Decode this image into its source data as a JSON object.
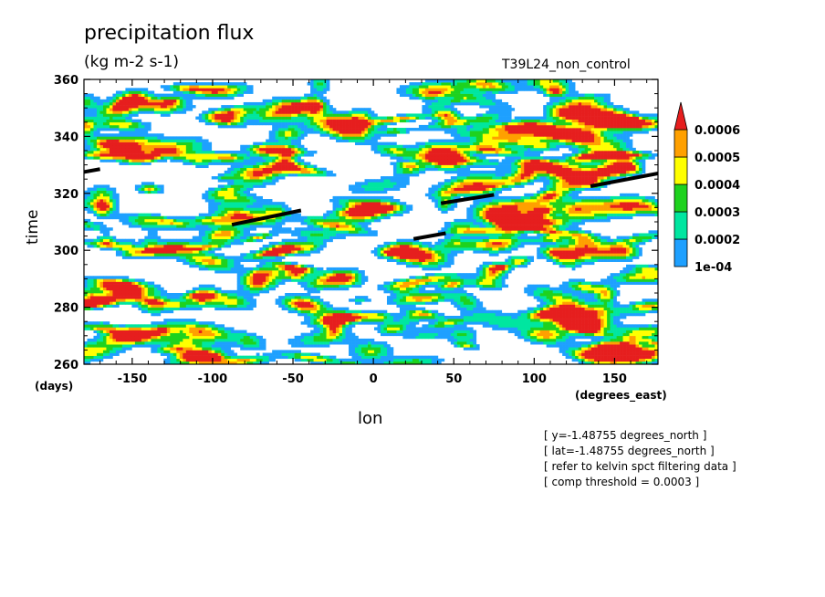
{
  "header": {
    "title": "precipitation flux",
    "units": "(kg m-2 s-1)",
    "experiment": "T39L24_non_control"
  },
  "axes": {
    "xlabel": "lon",
    "ylabel": "time",
    "xunits": "(degrees_east)",
    "yunits": "(days)"
  },
  "info_lines": [
    "[ y=-1.48755 degrees_north ]",
    "[ lat=-1.48755 degrees_north ]",
    "[ refer to kelvin spct filtering data ]",
    "[ comp threshold = 0.0003 ]"
  ],
  "chart_data": {
    "type": "heatmap",
    "x_range": [
      -180,
      177
    ],
    "y_range": [
      260,
      360
    ],
    "x_ticks": [
      -150,
      -100,
      -50,
      0,
      50,
      100,
      150
    ],
    "x_tick_labels": [
      "-150",
      "-100",
      "-50",
      "0",
      "50",
      "100",
      "150"
    ],
    "y_ticks": [
      260,
      280,
      300,
      320,
      340,
      360
    ],
    "y_tick_labels": [
      "260",
      "280",
      "300",
      "320",
      "340",
      "360"
    ],
    "colorbar": {
      "levels": [
        0.0001,
        0.0002,
        0.0003,
        0.0004,
        0.0005,
        0.0006
      ],
      "labels": [
        "1e-04",
        "0.0002",
        "0.0003",
        "0.0004",
        "0.0005",
        "0.0006"
      ],
      "colors": [
        "#1ea0ff",
        "#00e6a0",
        "#1ed21e",
        "#ffff00",
        "#ffa000",
        "#e61e1e"
      ]
    },
    "kelvin_track_segments": [
      {
        "x": [
          -180,
          -170
        ],
        "y": [
          327.5,
          328.5
        ]
      },
      {
        "x": [
          -88,
          -45
        ],
        "y": [
          309,
          314
        ]
      },
      {
        "x": [
          25,
          45
        ],
        "y": [
          304,
          306
        ]
      },
      {
        "x": [
          42,
          75
        ],
        "y": [
          316.5,
          319.5
        ]
      },
      {
        "x": [
          135,
          177
        ],
        "y": [
          322.5,
          327
        ]
      }
    ]
  }
}
